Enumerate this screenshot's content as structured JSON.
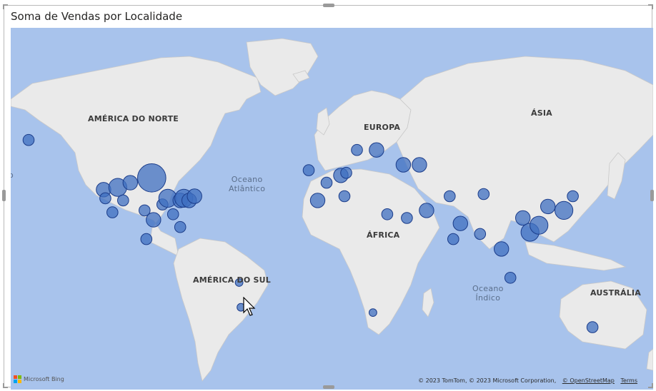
{
  "visual": {
    "title": "Soma de Vendas por Localidade"
  },
  "map": {
    "ocean_color": "#a8c3ec",
    "land_color": "#eaeaea",
    "bubble_fill": "#3f6fc0",
    "bubble_stroke": "#1c3d8a",
    "continent_labels": {
      "north_america": "AMÉRICA DO NORTE",
      "south_america": "AMÉRICA DO SUL",
      "europe": "EUROPA",
      "africa": "ÁFRICA",
      "asia": "ÁSIA",
      "australia": "AUSTRÁLIA"
    },
    "ocean_labels": {
      "atlantic_line1": "Oceano",
      "atlantic_line2": "Atlântico",
      "indian_line1": "Oceano",
      "indian_line2": "Índico",
      "pacific_fragment": "o"
    },
    "attribution": {
      "text": "© 2023 TomTom, © 2023 Microsoft Corporation,",
      "osm_link": "© OpenStreetMap",
      "terms_link": "Terms"
    },
    "logo_text": "Microsoft Bing"
  },
  "chart_data": {
    "type": "scatter",
    "title": "Soma de Vendas por Localidade",
    "points": [
      {
        "lon": -165,
        "lat": 63,
        "size": 2
      },
      {
        "lon": -96,
        "lat": 50,
        "size": 7
      },
      {
        "lon": -123,
        "lat": 45,
        "size": 3
      },
      {
        "lon": -115,
        "lat": 46,
        "size": 4
      },
      {
        "lon": -122,
        "lat": 41,
        "size": 2
      },
      {
        "lon": -118,
        "lat": 34,
        "size": 2
      },
      {
        "lon": -112,
        "lat": 40,
        "size": 2
      },
      {
        "lon": -108,
        "lat": 48,
        "size": 3
      },
      {
        "lon": -100,
        "lat": 35,
        "size": 2
      },
      {
        "lon": -95,
        "lat": 30,
        "size": 3
      },
      {
        "lon": -90,
        "lat": 38,
        "size": 2
      },
      {
        "lon": -87,
        "lat": 41,
        "size": 4
      },
      {
        "lon": -84,
        "lat": 33,
        "size": 2
      },
      {
        "lon": -80,
        "lat": 40,
        "size": 3
      },
      {
        "lon": -78,
        "lat": 41,
        "size": 4
      },
      {
        "lon": -75,
        "lat": 40,
        "size": 3
      },
      {
        "lon": -72,
        "lat": 42,
        "size": 3
      },
      {
        "lon": -80,
        "lat": 26,
        "size": 2
      },
      {
        "lon": -99,
        "lat": 19,
        "size": 2
      },
      {
        "lon": -47,
        "lat": -8,
        "size": 1
      },
      {
        "lon": -46,
        "lat": -23,
        "size": 1
      },
      {
        "lon": 2,
        "lat": 48,
        "size": 2
      },
      {
        "lon": -3,
        "lat": 40,
        "size": 3
      },
      {
        "lon": -8,
        "lat": 53,
        "size": 2
      },
      {
        "lon": 10,
        "lat": 51,
        "size": 3
      },
      {
        "lon": 13,
        "lat": 52,
        "size": 2
      },
      {
        "lon": 12,
        "lat": 42,
        "size": 2
      },
      {
        "lon": 19,
        "lat": 60,
        "size": 2
      },
      {
        "lon": 30,
        "lat": 60,
        "size": 3
      },
      {
        "lon": 45,
        "lat": 55,
        "size": 3
      },
      {
        "lon": 54,
        "lat": 55,
        "size": 3
      },
      {
        "lon": 36,
        "lat": 33,
        "size": 2
      },
      {
        "lon": 47,
        "lat": 31,
        "size": 2
      },
      {
        "lon": 58,
        "lat": 35,
        "size": 3
      },
      {
        "lon": 71,
        "lat": 42,
        "size": 2
      },
      {
        "lon": 77,
        "lat": 28,
        "size": 3
      },
      {
        "lon": 73,
        "lat": 19,
        "size": 2
      },
      {
        "lon": 88,
        "lat": 22,
        "size": 2
      },
      {
        "lon": 90,
        "lat": 43,
        "size": 2
      },
      {
        "lon": 100,
        "lat": 13,
        "size": 3
      },
      {
        "lon": 105,
        "lat": -5,
        "size": 2
      },
      {
        "lon": 112,
        "lat": 31,
        "size": 3
      },
      {
        "lon": 116,
        "lat": 23,
        "size": 4
      },
      {
        "lon": 121,
        "lat": 27,
        "size": 4
      },
      {
        "lon": 126,
        "lat": 37,
        "size": 3
      },
      {
        "lon": 135,
        "lat": 35,
        "size": 4
      },
      {
        "lon": 140,
        "lat": 42,
        "size": 2
      },
      {
        "lon": 28,
        "lat": -26,
        "size": 1
      },
      {
        "lon": 151,
        "lat": -34,
        "size": 2
      }
    ]
  }
}
